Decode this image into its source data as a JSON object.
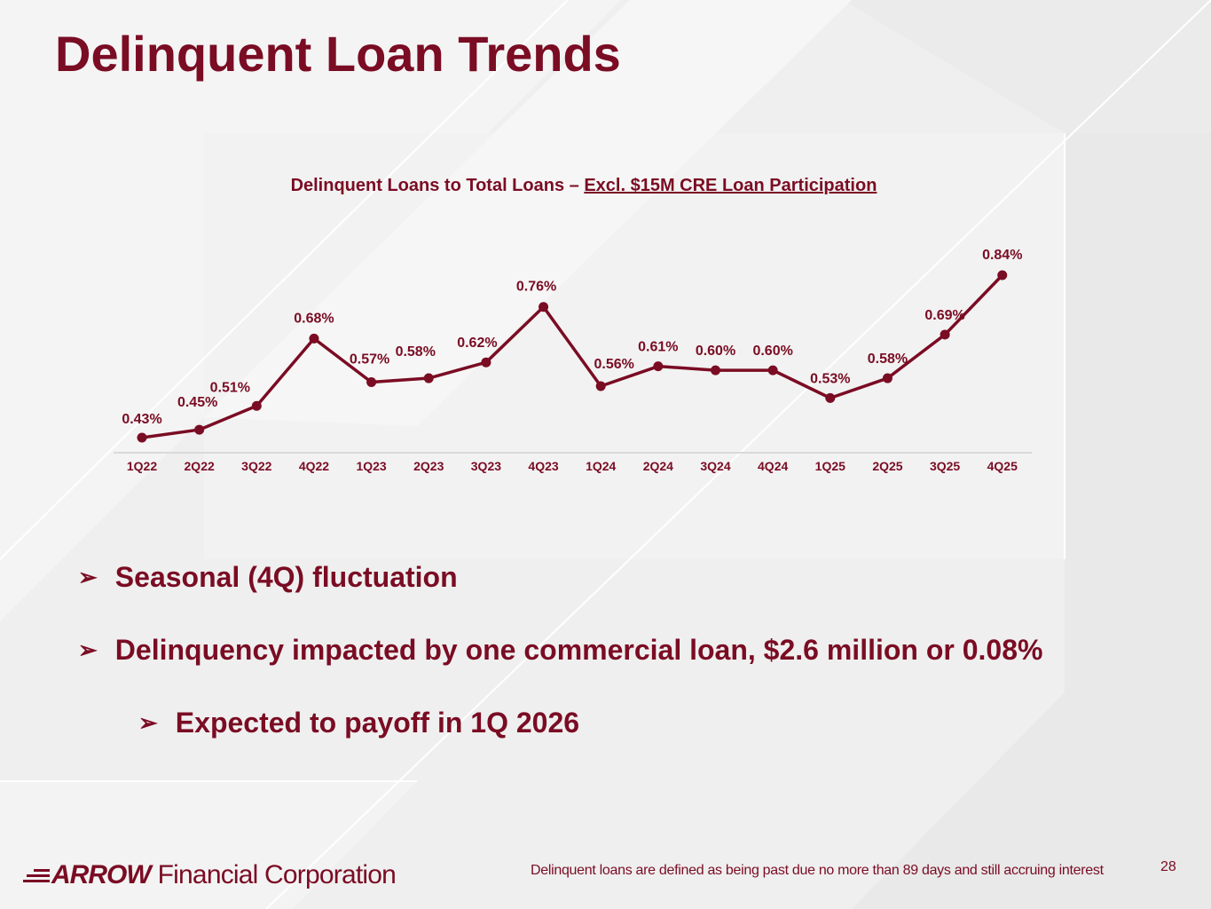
{
  "slide": {
    "title": "Delinquent Loan Trends",
    "page_number": "28",
    "footer_note": "Delinquent loans are defined as being past due no more than 89 days and still accruing interest"
  },
  "logo": {
    "brand": "ARROW",
    "suffix": "Financial Corporation"
  },
  "bullets": [
    {
      "text": "Seasonal (4Q) fluctuation",
      "level": 1
    },
    {
      "text": "Delinquency impacted by one commercial loan, $2.6 million or 0.08%",
      "level": 1
    },
    {
      "text": "Expected to payoff in 1Q 2026",
      "level": 2
    }
  ],
  "colors": {
    "brand": "#7a0c23",
    "axis": "#d9d9d9"
  },
  "chart_data": {
    "type": "line",
    "title": "Delinquent Loans to Total Loans – ",
    "title_underlined": "Excl. $15M CRE Loan Participation",
    "categories": [
      "1Q22",
      "2Q22",
      "3Q22",
      "4Q22",
      "1Q23",
      "2Q23",
      "3Q23",
      "4Q23",
      "1Q24",
      "2Q24",
      "3Q24",
      "4Q24",
      "1Q25",
      "2Q25",
      "3Q25",
      "4Q25"
    ],
    "series": [
      {
        "name": "Delinquent Loans to Total Loans",
        "values": [
          0.43,
          0.45,
          0.51,
          0.68,
          0.57,
          0.58,
          0.62,
          0.76,
          0.56,
          0.61,
          0.6,
          0.6,
          0.53,
          0.58,
          0.69,
          0.84
        ],
        "labels": [
          "0.43%",
          "0.45%",
          "0.51%",
          "0.68%",
          "0.57%",
          "0.58%",
          "0.62%",
          "0.76%",
          "0.56%",
          "0.61%",
          "0.60%",
          "0.60%",
          "0.53%",
          "0.58%",
          "0.69%",
          "0.84%"
        ]
      }
    ],
    "xlabel": "",
    "ylabel": "",
    "grid": false
  }
}
